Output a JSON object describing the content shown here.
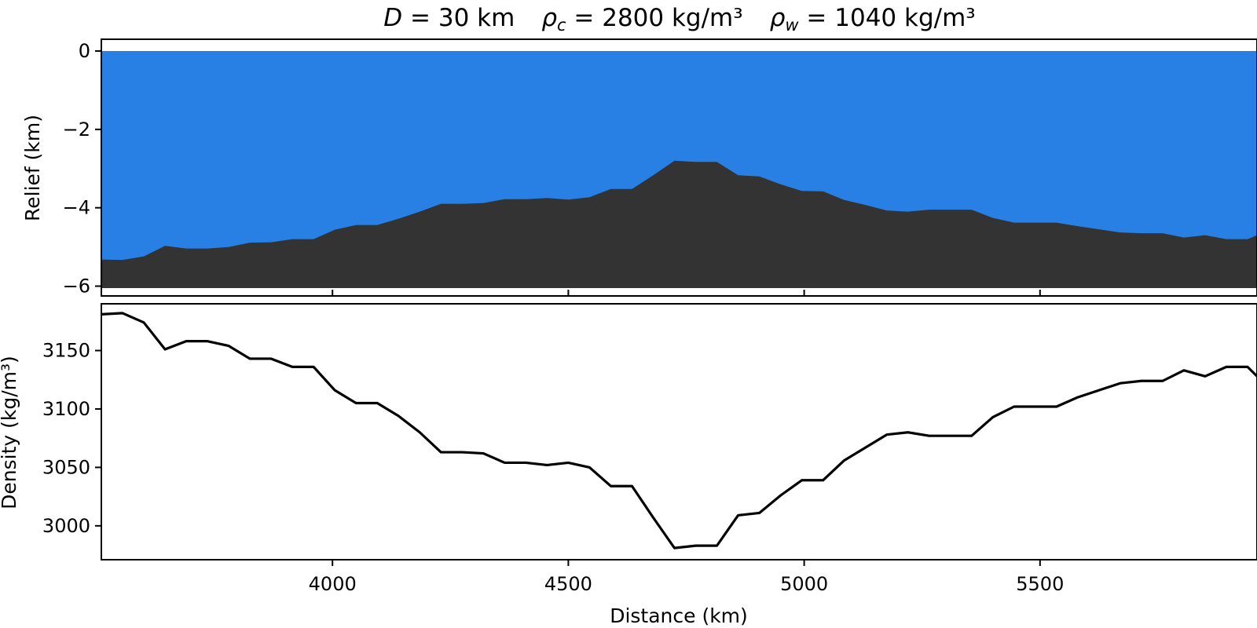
{
  "chart_data": [
    {
      "type": "area",
      "title_parts": {
        "d_symbol": "D",
        "d_value": " = 30 km",
        "rc_symbol": "ρ",
        "rc_sub": "c",
        "rc_value": " = 2800 kg/m³",
        "rw_symbol": "ρ",
        "rw_sub": "w",
        "rw_value": " = 1040 kg/m³"
      },
      "ylabel": "Relief (km)",
      "xlim": [
        3510,
        5960
      ],
      "ylim": [
        -6.25,
        0.3
      ],
      "yticks": [
        0,
        -2,
        -4,
        -6
      ],
      "ytick_labels": [
        "0",
        "−2",
        "−4",
        "−6"
      ],
      "xticks": [
        4000,
        4500,
        5000,
        5500
      ],
      "grid": false,
      "series": [
        {
          "fill": "#2880e4",
          "x": [
            3510,
            5960
          ],
          "upper": [
            0,
            0
          ],
          "lower": [
            -6.05,
            -6.05
          ]
        },
        {
          "fill": "#333333",
          "x": [
            3510,
            3555,
            3600,
            3645,
            3690,
            3735,
            3780,
            3825,
            3870,
            3915,
            3960,
            4005,
            4050,
            4095,
            4140,
            4185,
            4230,
            4275,
            4320,
            4365,
            4410,
            4455,
            4500,
            4545,
            4590,
            4635,
            4680,
            4725,
            4770,
            4815,
            4860,
            4905,
            4950,
            4995,
            5040,
            5085,
            5130,
            5175,
            5220,
            5265,
            5310,
            5355,
            5400,
            5445,
            5490,
            5535,
            5580,
            5625,
            5670,
            5715,
            5760,
            5805,
            5850,
            5895,
            5940,
            5960
          ],
          "upper": [
            -5.32,
            -5.33,
            -5.24,
            -4.97,
            -5.04,
            -5.04,
            -5.0,
            -4.89,
            -4.88,
            -4.8,
            -4.8,
            -4.56,
            -4.44,
            -4.44,
            -4.28,
            -4.1,
            -3.9,
            -3.9,
            -3.88,
            -3.78,
            -3.78,
            -3.75,
            -3.79,
            -3.73,
            -3.52,
            -3.52,
            -3.17,
            -2.8,
            -2.83,
            -2.83,
            -3.17,
            -3.2,
            -3.4,
            -3.57,
            -3.58,
            -3.8,
            -3.93,
            -4.07,
            -4.1,
            -4.05,
            -4.05,
            -4.05,
            -4.26,
            -4.38,
            -4.38,
            -4.38,
            -4.47,
            -4.55,
            -4.63,
            -4.65,
            -4.65,
            -4.76,
            -4.7,
            -4.8,
            -4.8,
            -4.7
          ],
          "lower": -6.05
        }
      ]
    },
    {
      "type": "line",
      "xlabel": "Distance (km)",
      "ylabel": "Density (kg/m³)",
      "xlim": [
        3510,
        5960
      ],
      "ylim": [
        2971,
        3190
      ],
      "yticks": [
        3000,
        3050,
        3100,
        3150
      ],
      "xticks": [
        4000,
        4500,
        5000,
        5500
      ],
      "grid": false,
      "series": [
        {
          "color": "#000000",
          "x": [
            3510,
            3555,
            3600,
            3645,
            3690,
            3735,
            3780,
            3825,
            3870,
            3915,
            3960,
            4005,
            4050,
            4095,
            4140,
            4185,
            4230,
            4275,
            4320,
            4365,
            4410,
            4455,
            4500,
            4545,
            4590,
            4635,
            4680,
            4725,
            4770,
            4815,
            4860,
            4905,
            4950,
            4995,
            5040,
            5085,
            5130,
            5175,
            5220,
            5265,
            5310,
            5355,
            5400,
            5445,
            5490,
            5535,
            5580,
            5625,
            5670,
            5715,
            5760,
            5805,
            5850,
            5895,
            5940,
            5960
          ],
          "values": [
            3181,
            3182,
            3174,
            3151,
            3158,
            3158,
            3154,
            3143,
            3143,
            3136,
            3136,
            3116,
            3105,
            3105,
            3094,
            3080,
            3063,
            3063,
            3062,
            3054,
            3054,
            3052,
            3054,
            3050,
            3034,
            3034,
            3007,
            2981,
            2983,
            2983,
            3009,
            3011,
            3026,
            3039,
            3039,
            3056,
            3067,
            3078,
            3080,
            3077,
            3077,
            3077,
            3093,
            3102,
            3102,
            3102,
            3110,
            3116,
            3122,
            3124,
            3124,
            3133,
            3128,
            3136,
            3136,
            3128
          ]
        }
      ]
    }
  ]
}
